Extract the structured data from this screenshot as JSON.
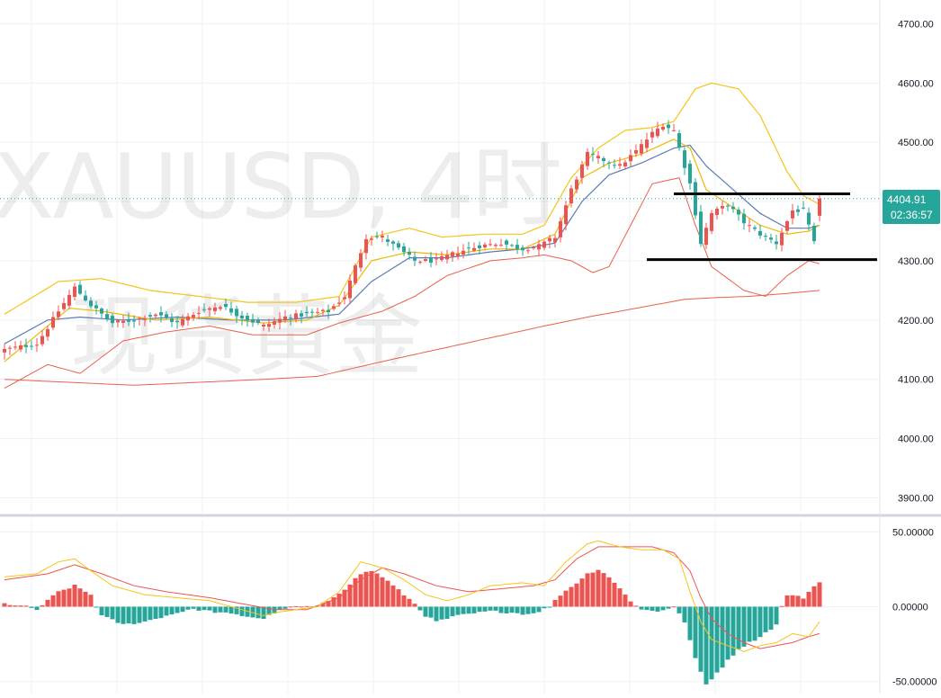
{
  "watermark": {
    "symbol_line": "XAUUSD, 4时",
    "name_line": "现货黄金"
  },
  "price_badge": {
    "price": "4404.91",
    "countdown": "02:36:57",
    "color": "#26a69a"
  },
  "colors": {
    "up": "#ef5350",
    "down": "#26a69a",
    "bollinger": "#f5c518",
    "ema_blue": "#5b7bb5",
    "ema_yellow": "#f2b705",
    "long_ma": "#e8604c",
    "macd_line": "#f5c518",
    "signal_line": "#ef5350",
    "level_line": "#000000"
  },
  "chart_data": [
    {
      "type": "candlestick",
      "symbol": "XAUUSD",
      "timeframe": "4时",
      "ylim": [
        3875,
        4740
      ],
      "yticks": [
        "4700.00",
        "4600.00",
        "4500.00",
        "4400.00",
        "4300.00",
        "4200.00",
        "4100.00",
        "4000.00",
        "3900.00"
      ],
      "ytick_values": [
        4700,
        4600,
        4500,
        4400,
        4300,
        4200,
        4100,
        4000,
        3900
      ],
      "current_price": 4404.91,
      "drawn_levels": [
        {
          "price": 4413,
          "bar_from": 124,
          "bar_to": 151
        },
        {
          "price": 4302,
          "bar_from": 119,
          "bar_to": 156
        }
      ],
      "close_anchors": [
        [
          0,
          4150
        ],
        [
          6,
          4160
        ],
        [
          10,
          4215
        ],
        [
          13,
          4255
        ],
        [
          16,
          4225
        ],
        [
          20,
          4195
        ],
        [
          24,
          4200
        ],
        [
          28,
          4210
        ],
        [
          32,
          4195
        ],
        [
          36,
          4215
        ],
        [
          40,
          4225
        ],
        [
          44,
          4205
        ],
        [
          48,
          4190
        ],
        [
          52,
          4205
        ],
        [
          56,
          4210
        ],
        [
          60,
          4215
        ],
        [
          63,
          4240
        ],
        [
          67,
          4340
        ],
        [
          70,
          4340
        ],
        [
          73,
          4320
        ],
        [
          76,
          4300
        ],
        [
          80,
          4300
        ],
        [
          84,
          4315
        ],
        [
          88,
          4325
        ],
        [
          92,
          4330
        ],
        [
          96,
          4320
        ],
        [
          99,
          4325
        ],
        [
          102,
          4340
        ],
        [
          105,
          4420
        ],
        [
          108,
          4480
        ],
        [
          111,
          4470
        ],
        [
          114,
          4460
        ],
        [
          117,
          4485
        ],
        [
          120,
          4515
        ],
        [
          122,
          4530
        ],
        [
          124,
          4520
        ],
        [
          127,
          4430
        ],
        [
          129,
          4330
        ],
        [
          131,
          4380
        ],
        [
          134,
          4395
        ],
        [
          137,
          4365
        ],
        [
          140,
          4345
        ],
        [
          143,
          4330
        ],
        [
          146,
          4385
        ],
        [
          148,
          4385
        ],
        [
          150,
          4330
        ],
        [
          151,
          4404.91
        ]
      ],
      "bollinger_upper_anchors": [
        [
          0,
          4210
        ],
        [
          10,
          4265
        ],
        [
          18,
          4270
        ],
        [
          27,
          4250
        ],
        [
          36,
          4240
        ],
        [
          45,
          4230
        ],
        [
          54,
          4230
        ],
        [
          62,
          4240
        ],
        [
          68,
          4340
        ],
        [
          75,
          4355
        ],
        [
          81,
          4340
        ],
        [
          89,
          4345
        ],
        [
          96,
          4345
        ],
        [
          100,
          4360
        ],
        [
          105,
          4440
        ],
        [
          110,
          4490
        ],
        [
          115,
          4520
        ],
        [
          120,
          4525
        ],
        [
          124,
          4535
        ],
        [
          128,
          4590
        ],
        [
          131,
          4600
        ],
        [
          136,
          4590
        ],
        [
          140,
          4545
        ],
        [
          145,
          4450
        ],
        [
          148,
          4410
        ],
        [
          151,
          4395
        ]
      ],
      "bollinger_lower_anchors": [
        [
          0,
          4085
        ],
        [
          8,
          4125
        ],
        [
          14,
          4110
        ],
        [
          22,
          4165
        ],
        [
          30,
          4180
        ],
        [
          38,
          4190
        ],
        [
          46,
          4175
        ],
        [
          56,
          4175
        ],
        [
          62,
          4195
        ],
        [
          70,
          4215
        ],
        [
          76,
          4240
        ],
        [
          82,
          4275
        ],
        [
          90,
          4300
        ],
        [
          96,
          4305
        ],
        [
          100,
          4310
        ],
        [
          105,
          4300
        ],
        [
          109,
          4280
        ],
        [
          112,
          4290
        ],
        [
          116,
          4360
        ],
        [
          120,
          4430
        ],
        [
          125,
          4440
        ],
        [
          128,
          4360
        ],
        [
          131,
          4290
        ],
        [
          137,
          4250
        ],
        [
          141,
          4240
        ],
        [
          145,
          4275
        ],
        [
          149,
          4300
        ],
        [
          151,
          4295
        ]
      ],
      "ema_fast_anchors": [
        [
          0,
          4130
        ],
        [
          6,
          4175
        ],
        [
          12,
          4220
        ],
        [
          18,
          4215
        ],
        [
          28,
          4200
        ],
        [
          38,
          4205
        ],
        [
          48,
          4195
        ],
        [
          56,
          4200
        ],
        [
          62,
          4225
        ],
        [
          68,
          4300
        ],
        [
          75,
          4315
        ],
        [
          82,
          4310
        ],
        [
          90,
          4320
        ],
        [
          96,
          4320
        ],
        [
          102,
          4345
        ],
        [
          107,
          4440
        ],
        [
          112,
          4465
        ],
        [
          118,
          4480
        ],
        [
          124,
          4505
        ],
        [
          127,
          4490
        ],
        [
          130,
          4420
        ],
        [
          135,
          4390
        ],
        [
          140,
          4360
        ],
        [
          145,
          4345
        ],
        [
          149,
          4350
        ],
        [
          151,
          4360
        ]
      ],
      "ema_slow_anchors": [
        [
          0,
          4160
        ],
        [
          8,
          4200
        ],
        [
          14,
          4205
        ],
        [
          22,
          4200
        ],
        [
          32,
          4205
        ],
        [
          42,
          4200
        ],
        [
          52,
          4200
        ],
        [
          62,
          4210
        ],
        [
          68,
          4265
        ],
        [
          75,
          4305
        ],
        [
          82,
          4305
        ],
        [
          90,
          4315
        ],
        [
          96,
          4320
        ],
        [
          102,
          4330
        ],
        [
          107,
          4400
        ],
        [
          112,
          4445
        ],
        [
          118,
          4465
        ],
        [
          124,
          4490
        ],
        [
          127,
          4495
        ],
        [
          130,
          4460
        ],
        [
          135,
          4420
        ],
        [
          140,
          4380
        ],
        [
          145,
          4355
        ],
        [
          149,
          4355
        ],
        [
          151,
          4360
        ]
      ],
      "long_ma_anchors": [
        [
          0,
          4100
        ],
        [
          12,
          4095
        ],
        [
          24,
          4090
        ],
        [
          36,
          4095
        ],
        [
          48,
          4100
        ],
        [
          58,
          4105
        ],
        [
          70,
          4130
        ],
        [
          80,
          4150
        ],
        [
          90,
          4170
        ],
        [
          100,
          4190
        ],
        [
          108,
          4205
        ],
        [
          114,
          4215
        ],
        [
          120,
          4225
        ],
        [
          126,
          4235
        ],
        [
          132,
          4238
        ],
        [
          138,
          4240
        ],
        [
          145,
          4245
        ],
        [
          151,
          4250
        ]
      ]
    },
    {
      "type": "histogram",
      "indicator": "MACD",
      "ylim": [
        -58,
        58
      ],
      "yticks": [
        "50.00000",
        "0.00000",
        "-50.00000"
      ],
      "ytick_values": [
        50,
        0,
        -50
      ],
      "hist_anchors": [
        [
          0,
          2
        ],
        [
          4,
          0
        ],
        [
          6,
          -2
        ],
        [
          8,
          4
        ],
        [
          10,
          10
        ],
        [
          13,
          14
        ],
        [
          16,
          8
        ],
        [
          17,
          0
        ],
        [
          18,
          -6
        ],
        [
          22,
          -12
        ],
        [
          26,
          -10
        ],
        [
          30,
          -6
        ],
        [
          34,
          -2
        ],
        [
          36,
          -2
        ],
        [
          40,
          -4
        ],
        [
          44,
          -6
        ],
        [
          48,
          -8
        ],
        [
          50,
          -4
        ],
        [
          52,
          -1
        ],
        [
          54,
          0
        ],
        [
          58,
          0
        ],
        [
          60,
          4
        ],
        [
          63,
          12
        ],
        [
          66,
          22
        ],
        [
          68,
          24
        ],
        [
          70,
          20
        ],
        [
          72,
          14
        ],
        [
          74,
          8
        ],
        [
          76,
          2
        ],
        [
          78,
          -6
        ],
        [
          80,
          -10
        ],
        [
          82,
          -8
        ],
        [
          84,
          -6
        ],
        [
          86,
          -5
        ],
        [
          90,
          -3
        ],
        [
          94,
          -4
        ],
        [
          97,
          -5
        ],
        [
          99,
          -3
        ],
        [
          101,
          0
        ],
        [
          103,
          8
        ],
        [
          106,
          16
        ],
        [
          108,
          22
        ],
        [
          110,
          25
        ],
        [
          112,
          20
        ],
        [
          114,
          12
        ],
        [
          116,
          4
        ],
        [
          118,
          -2
        ],
        [
          121,
          -3
        ],
        [
          123,
          -1
        ],
        [
          124,
          0
        ],
        [
          126,
          -10
        ],
        [
          128,
          -35
        ],
        [
          130,
          -52
        ],
        [
          132,
          -44
        ],
        [
          134,
          -36
        ],
        [
          136,
          -28
        ],
        [
          140,
          -20
        ],
        [
          143,
          -12
        ],
        [
          144,
          0
        ],
        [
          145,
          8
        ],
        [
          148,
          6
        ],
        [
          149,
          10
        ],
        [
          151,
          17
        ]
      ],
      "macd_line_anchors": [
        [
          0,
          20
        ],
        [
          6,
          22
        ],
        [
          10,
          30
        ],
        [
          13,
          32
        ],
        [
          16,
          24
        ],
        [
          20,
          14
        ],
        [
          26,
          8
        ],
        [
          32,
          6
        ],
        [
          38,
          4
        ],
        [
          44,
          -2
        ],
        [
          48,
          -6
        ],
        [
          50,
          -4
        ],
        [
          54,
          -2
        ],
        [
          58,
          0
        ],
        [
          62,
          10
        ],
        [
          66,
          30
        ],
        [
          70,
          26
        ],
        [
          74,
          18
        ],
        [
          78,
          8
        ],
        [
          82,
          4
        ],
        [
          86,
          8
        ],
        [
          90,
          14
        ],
        [
          96,
          16
        ],
        [
          100,
          14
        ],
        [
          104,
          30
        ],
        [
          108,
          42
        ],
        [
          110,
          44
        ],
        [
          114,
          40
        ],
        [
          118,
          38
        ],
        [
          122,
          38
        ],
        [
          125,
          32
        ],
        [
          127,
          10
        ],
        [
          129,
          -10
        ],
        [
          131,
          -22
        ],
        [
          134,
          -26
        ],
        [
          137,
          -30
        ],
        [
          140,
          -26
        ],
        [
          143,
          -24
        ],
        [
          146,
          -18
        ],
        [
          149,
          -20
        ],
        [
          151,
          -10
        ]
      ],
      "signal_line_anchors": [
        [
          0,
          18
        ],
        [
          8,
          22
        ],
        [
          13,
          28
        ],
        [
          18,
          22
        ],
        [
          24,
          14
        ],
        [
          30,
          10
        ],
        [
          38,
          6
        ],
        [
          44,
          2
        ],
        [
          50,
          -2
        ],
        [
          56,
          -2
        ],
        [
          62,
          6
        ],
        [
          66,
          18
        ],
        [
          70,
          26
        ],
        [
          74,
          22
        ],
        [
          80,
          14
        ],
        [
          86,
          10
        ],
        [
          92,
          12
        ],
        [
          98,
          14
        ],
        [
          102,
          18
        ],
        [
          106,
          32
        ],
        [
          110,
          40
        ],
        [
          114,
          40
        ],
        [
          120,
          40
        ],
        [
          124,
          36
        ],
        [
          127,
          24
        ],
        [
          129,
          6
        ],
        [
          131,
          -8
        ],
        [
          134,
          -18
        ],
        [
          137,
          -24
        ],
        [
          140,
          -28
        ],
        [
          143,
          -26
        ],
        [
          146,
          -24
        ],
        [
          149,
          -20
        ],
        [
          151,
          -18
        ]
      ]
    }
  ]
}
